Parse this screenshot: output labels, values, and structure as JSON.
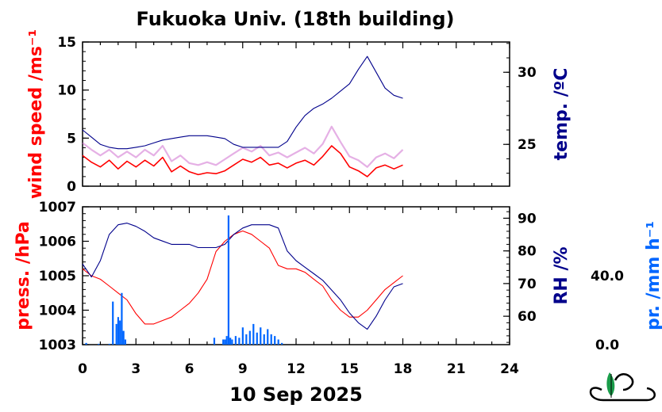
{
  "title": "Fukuoka Univ. (18th building)",
  "date_label": "10 Sep 2025",
  "colors": {
    "red": "#ff0000",
    "pink": "#d070d0",
    "navy": "#00008b",
    "blue": "#0066ff",
    "axis": "#000000"
  },
  "chart_data": [
    {
      "type": "line",
      "panel": "top",
      "xlim": [
        0,
        24
      ],
      "x_ticks": [
        "0",
        "3",
        "6",
        "9",
        "12",
        "15",
        "18",
        "21",
        "24"
      ],
      "y_left": {
        "label": "wind speed /ms⁻¹",
        "ylim": [
          0,
          15
        ],
        "ticks": [
          "0",
          "5",
          "10",
          "15"
        ],
        "color": "#ff0000"
      },
      "y_right": {
        "label": "temp. /ºC",
        "ylim": [
          22.1,
          32.1
        ],
        "ticks": [
          "25",
          "30"
        ],
        "color": "#00008b"
      },
      "series": [
        {
          "name": "wind speed (mean)",
          "axis": "left",
          "color": "#ff0000",
          "x": [
            0,
            0.5,
            1,
            1.5,
            2,
            2.5,
            3,
            3.5,
            4,
            4.5,
            5,
            5.5,
            6,
            6.5,
            7,
            7.5,
            8,
            8.5,
            9,
            9.5,
            10,
            10.5,
            11,
            11.5,
            12,
            12.5,
            13,
            13.5,
            14,
            14.5,
            15,
            15.5,
            16,
            16.5,
            17,
            17.5,
            18
          ],
          "y": [
            3.2,
            2.5,
            2.0,
            2.7,
            1.8,
            2.6,
            2.0,
            2.7,
            2.1,
            3.0,
            1.5,
            2.1,
            1.5,
            1.2,
            1.4,
            1.3,
            1.6,
            2.2,
            2.8,
            2.5,
            3.0,
            2.2,
            2.4,
            1.9,
            2.4,
            2.7,
            2.2,
            3.1,
            4.2,
            3.4,
            2.0,
            1.6,
            1.0,
            1.9,
            2.2,
            1.8,
            2.2
          ]
        },
        {
          "name": "wind speed (gust)",
          "axis": "left",
          "color": "#d070d0",
          "x": [
            0,
            0.5,
            1,
            1.5,
            2,
            2.5,
            3,
            3.5,
            4,
            4.5,
            5,
            5.5,
            6,
            6.5,
            7,
            7.5,
            8,
            8.5,
            9,
            9.5,
            10,
            10.5,
            11,
            11.5,
            12,
            12.5,
            13,
            13.5,
            14,
            14.5,
            15,
            15.5,
            16,
            16.5,
            17,
            17.5,
            18
          ],
          "y": [
            4.5,
            3.8,
            3.2,
            3.8,
            3.0,
            3.6,
            3.0,
            3.8,
            3.2,
            4.2,
            2.6,
            3.2,
            2.4,
            2.2,
            2.5,
            2.2,
            2.8,
            3.4,
            4.0,
            3.6,
            4.2,
            3.2,
            3.5,
            3.0,
            3.5,
            4.0,
            3.4,
            4.4,
            6.2,
            4.6,
            3.1,
            2.7,
            2.0,
            3.0,
            3.4,
            2.9,
            3.8
          ]
        },
        {
          "name": "temperature",
          "axis": "right",
          "color": "#00008b",
          "x": [
            0,
            0.5,
            1,
            1.5,
            2,
            2.5,
            3,
            3.5,
            4,
            4.5,
            5,
            5.5,
            6,
            6.5,
            7,
            7.5,
            8,
            8.5,
            9,
            9.5,
            10,
            10.5,
            11,
            11.5,
            12,
            12.5,
            13,
            13.5,
            14,
            14.5,
            15,
            15.5,
            16,
            16.5,
            17,
            17.5,
            18
          ],
          "y": [
            26.0,
            25.5,
            25.0,
            24.8,
            24.7,
            24.7,
            24.8,
            24.9,
            25.1,
            25.3,
            25.4,
            25.5,
            25.6,
            25.6,
            25.6,
            25.5,
            25.4,
            25.0,
            24.8,
            24.8,
            24.8,
            24.8,
            24.8,
            25.2,
            26.2,
            27.0,
            27.5,
            27.8,
            28.2,
            28.7,
            29.2,
            30.2,
            31.1,
            30.0,
            28.9,
            28.4,
            28.2
          ]
        }
      ]
    },
    {
      "type": "line",
      "panel": "bottom",
      "xlim": [
        0,
        24
      ],
      "x_ticks": [
        "0",
        "3",
        "6",
        "9",
        "12",
        "15",
        "18",
        "21",
        "24"
      ],
      "y_left": {
        "label": "press. /hPa",
        "ylim": [
          1003,
          1007
        ],
        "ticks": [
          "1003",
          "1004",
          "1005",
          "1006",
          "1007"
        ],
        "color": "#ff0000"
      },
      "y_right": {
        "label": "RH /%",
        "ylim": [
          51.3,
          93.5
        ],
        "ticks": [
          "60",
          "70",
          "80",
          "90"
        ],
        "color": "#00008b"
      },
      "y_precip": {
        "label": "pr. /mm h⁻¹",
        "ylim": [
          0,
          80
        ],
        "ticks": [
          "0.0",
          "40.0"
        ],
        "color": "#0066ff"
      },
      "series": [
        {
          "name": "pressure",
          "axis": "left",
          "color": "#ff0000",
          "x": [
            0,
            0.5,
            1,
            1.5,
            2,
            2.5,
            3,
            3.5,
            4,
            4.5,
            5,
            5.5,
            6,
            6.5,
            7,
            7.5,
            8,
            8.5,
            9,
            9.5,
            10,
            10.5,
            11,
            11.5,
            12,
            12.5,
            13,
            13.5,
            14,
            14.5,
            15,
            15.5,
            16,
            16.5,
            17,
            17.5,
            18
          ],
          "y": [
            1005.2,
            1005.0,
            1004.9,
            1004.7,
            1004.5,
            1004.3,
            1003.9,
            1003.6,
            1003.6,
            1003.7,
            1003.8,
            1004.0,
            1004.2,
            1004.5,
            1004.9,
            1005.7,
            1006.0,
            1006.2,
            1006.3,
            1006.2,
            1006.0,
            1005.8,
            1005.3,
            1005.2,
            1005.2,
            1005.1,
            1004.9,
            1004.7,
            1004.3,
            1004.0,
            1003.8,
            1003.8,
            1004.0,
            1004.3,
            1004.6,
            1004.8,
            1005.0
          ]
        },
        {
          "name": "relative humidity",
          "axis": "right",
          "color": "#00008b",
          "x": [
            0,
            0.5,
            1,
            1.5,
            2,
            2.5,
            3,
            3.5,
            4,
            4.5,
            5,
            5.5,
            6,
            6.5,
            7,
            7.5,
            8,
            8.5,
            9,
            9.5,
            10,
            10.5,
            11,
            11.5,
            12,
            12.5,
            13,
            13.5,
            14,
            14.5,
            15,
            15.5,
            16,
            16.5,
            17,
            17.5,
            18
          ],
          "y": [
            76,
            72,
            77,
            85,
            88,
            88.5,
            87.5,
            86,
            84,
            83,
            82,
            82,
            82,
            81,
            81,
            81,
            82,
            85,
            87,
            88,
            88,
            88,
            87,
            80,
            77,
            75,
            73,
            71,
            68,
            65,
            61,
            58,
            56,
            60,
            65,
            69,
            70
          ]
        },
        {
          "name": "precipitation",
          "axis": "precip",
          "color": "#0066ff",
          "x": [
            0.2,
            0.9,
            1.5,
            1.7,
            1.9,
            2.0,
            2.1,
            2.2,
            2.3,
            2.4,
            7.4,
            7.9,
            8.0,
            8.1,
            8.2,
            8.3,
            8.4,
            8.6,
            8.8,
            9.0,
            9.2,
            9.4,
            9.6,
            9.8,
            10.0,
            10.2,
            10.4,
            10.6,
            10.8,
            11.0,
            11.2
          ],
          "y": [
            1,
            0.5,
            0.5,
            25,
            12,
            16,
            14,
            30,
            8,
            3,
            4,
            3,
            3,
            5,
            75,
            4,
            3,
            5,
            4,
            10,
            6,
            8,
            12,
            7,
            10,
            6,
            9,
            6,
            5,
            3,
            1
          ]
        }
      ]
    }
  ]
}
